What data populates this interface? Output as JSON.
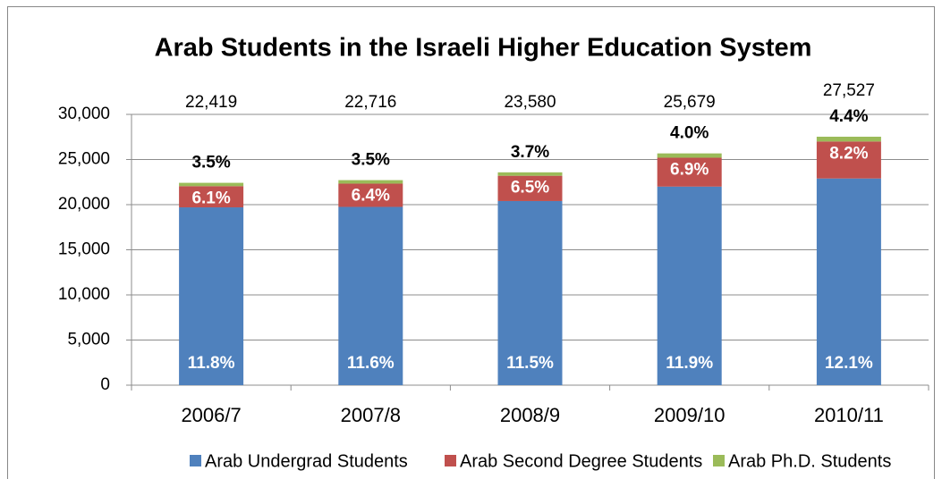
{
  "chart_data": {
    "type": "stacked_bar",
    "title": "Arab Students in the Israeli Higher Education System",
    "categories": [
      "2006/7",
      "2007/8",
      "2008/9",
      "2009/10",
      "2010/11"
    ],
    "series": [
      {
        "name": "Arab Undergrad Students",
        "color": "#4f81bd",
        "values": [
          19700,
          19750,
          20400,
          22000,
          22900
        ],
        "labels": [
          "11.8%",
          "11.6%",
          "11.5%",
          "11.9%",
          "12.1%"
        ]
      },
      {
        "name": "Arab Second Degree Students",
        "color": "#c0504d",
        "values": [
          2350,
          2580,
          2800,
          3200,
          4100
        ],
        "labels": [
          "6.1%",
          "6.4%",
          "6.5%",
          "6.9%",
          "8.2%"
        ]
      },
      {
        "name": "Arab Ph.D. Students",
        "color": "#9bbb59",
        "values": [
          369,
          386,
          380,
          479,
          527
        ],
        "labels": [
          "3.5%",
          "3.5%",
          "3.7%",
          "4.0%",
          "4.4%"
        ]
      }
    ],
    "totals": [
      {
        "value": 22419,
        "label": "22,419"
      },
      {
        "value": 22716,
        "label": "22,716"
      },
      {
        "value": 23580,
        "label": "23,580"
      },
      {
        "value": 25679,
        "label": "25,679"
      },
      {
        "value": 27527,
        "label": "27,527"
      }
    ],
    "ylim": [
      0,
      30000
    ],
    "yticks": [
      0,
      {
        "value": 5000,
        "label": "5,000"
      },
      {
        "value": 10000,
        "label": "10,000"
      },
      {
        "value": 15000,
        "label": "15,000"
      },
      {
        "value": 20000,
        "label": "20,000"
      },
      {
        "value": 25000,
        "label": "25,000"
      },
      {
        "value": 30000,
        "label": "30,000"
      }
    ],
    "grid": true,
    "legend": "bottom"
  }
}
